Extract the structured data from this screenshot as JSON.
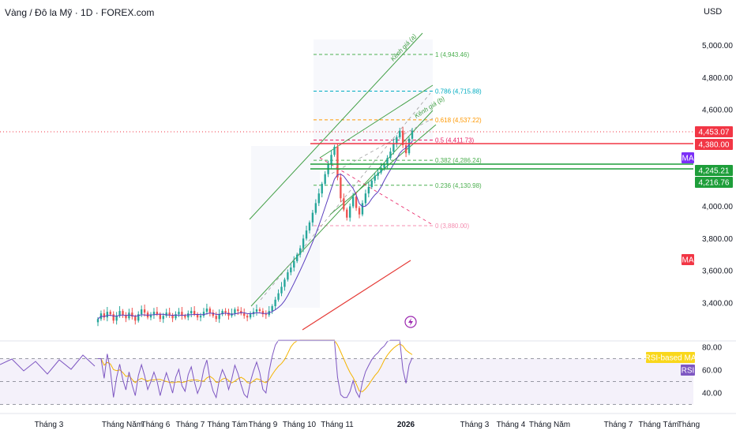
{
  "header": {
    "title": "Vàng / Đô la Mỹ · 1D · FOREX.com",
    "currency": "USD"
  },
  "colors": {
    "up": "#26a69a",
    "down": "#ef5350",
    "ma_fast": "#5b3fbf",
    "ma_slow": "#e53935",
    "channel": "#43a047",
    "rsi_line": "#7e57c2",
    "rsi_ma": "#f4b400",
    "resistance": "#f23645",
    "support": "#1e9e3a"
  },
  "chart_data": [
    {
      "type": "candlestick",
      "title": "Vàng / Đô la Mỹ · 1D · FOREX.com",
      "ylabel": "USD",
      "ylim": [
        3180,
        5100
      ],
      "y_ticks": [
        "5,000.00",
        "4,800.00",
        "4,600.00",
        "4,000.00",
        "3,800.00",
        "3,600.00",
        "3,400.00"
      ],
      "x_ticks": [
        "Tháng 3",
        "Tháng Năm",
        "Tháng 6",
        "Tháng 7",
        "Tháng Tám",
        "Tháng 9",
        "Tháng 10",
        "Tháng 11",
        "2026",
        "Tháng 3",
        "Tháng 4",
        "Tháng Năm",
        "Tháng 7",
        "Tháng Tám",
        "Tháng"
      ],
      "closes": [
        3300,
        3335,
        3310,
        3345,
        3330,
        3290,
        3320,
        3350,
        3325,
        3305,
        3340,
        3315,
        3290,
        3330,
        3360,
        3340,
        3310,
        3325,
        3345,
        3330,
        3300,
        3320,
        3340,
        3325,
        3305,
        3330,
        3345,
        3320,
        3310,
        3335,
        3350,
        3330,
        3310,
        3320,
        3345,
        3365,
        3340,
        3320,
        3300,
        3330,
        3350,
        3340,
        3320,
        3335,
        3360,
        3350,
        3335,
        3320,
        3310,
        3330,
        3345,
        3360,
        3350,
        3330,
        3325,
        3350,
        3380,
        3420,
        3460,
        3500,
        3545,
        3590,
        3620,
        3660,
        3700,
        3740,
        3800,
        3850,
        3900,
        3960,
        4020,
        4080,
        4140,
        4200,
        4260,
        4320,
        4370,
        4180,
        4050,
        3980,
        3930,
        4000,
        4060,
        3990,
        3950,
        4020,
        4080,
        4120,
        4160,
        4190,
        4210,
        4240,
        4260,
        4300,
        4340,
        4390,
        4430,
        4470,
        4380,
        4330,
        4420,
        4470
      ],
      "moving_averages": [
        {
          "name": "MA",
          "badge_color": "#7b2ff7"
        },
        {
          "name": "MA",
          "badge_color": "#f23645"
        }
      ],
      "price_labels": [
        {
          "text": "4,453.07",
          "color": "#f23645"
        },
        {
          "text": "4,380.00",
          "color": "#f23645"
        },
        {
          "text": "4,245.21",
          "color": "#1e9e3a"
        },
        {
          "text": "4,216.76",
          "color": "#1e9e3a"
        }
      ],
      "fibonacci": [
        {
          "label": "1 (4,943.46)",
          "price": 4943.46,
          "color": "#4caf50"
        },
        {
          "label": "0.786 (4,715.88)",
          "price": 4715.88,
          "color": "#00acc1"
        },
        {
          "label": "0.618 (4,537.22)",
          "price": 4537.22,
          "color": "#ff9800"
        },
        {
          "label": "0.5 (4,411.73)",
          "price": 4411.73,
          "color": "#e91e63"
        },
        {
          "label": "0.382 (4,286.24)",
          "price": 4286.24,
          "color": "#4caf50"
        },
        {
          "label": "0.236 (4,130.98)",
          "price": 4130.98,
          "color": "#4caf50"
        },
        {
          "label": "0 (3,880.00)",
          "price": 3880.0,
          "color": "#f48fb1"
        }
      ],
      "annotations": [
        "Kênh giá (a)",
        "Kênh giá (b)"
      ]
    },
    {
      "type": "line",
      "name": "RSI",
      "ylim": [
        30,
        90
      ],
      "y_ticks": [
        "80.00",
        "60.00",
        "40.00"
      ],
      "levels": [
        70,
        50,
        30
      ],
      "labels": [
        {
          "text": "RSI-based MA",
          "bg": "#f9d71c",
          "fg": "#131722"
        },
        {
          "text": "RSI",
          "bg": "#7e57c2",
          "fg": "#ffffff"
        }
      ]
    }
  ]
}
